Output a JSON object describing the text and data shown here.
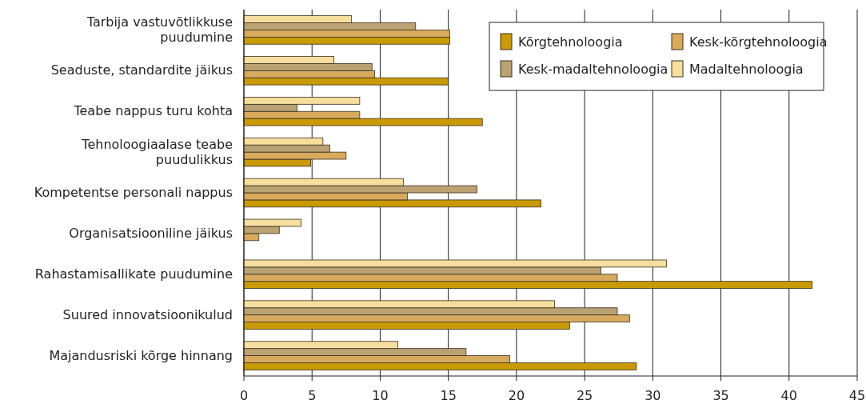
{
  "chart_data": {
    "type": "bar",
    "orientation": "horizontal",
    "categories": [
      "Tarbija vastuvõtlikkuse puudumine",
      "Seaduste, standardite jäikus",
      "Teabe nappus turu kohta",
      "Tehnoloogiaalase teabe puudulikkus",
      "Kompetentse personali nappus",
      "Organisatsiooniline jäikus",
      "Rahastamisallikate puudumine",
      "Suured innovatsioonikulud",
      "Majandusriski kõrge hinnang"
    ],
    "series": [
      {
        "name": "Kõrgtehnoloogia",
        "color": "#c99a06",
        "values": [
          15.1,
          15.0,
          17.5,
          4.9,
          21.8,
          0,
          41.7,
          23.9,
          28.8
        ]
      },
      {
        "name": "Kesk-kõrgtehnoloogia",
        "color": "#d8aa5e",
        "values": [
          15.1,
          9.6,
          8.5,
          7.5,
          12.0,
          1.1,
          27.4,
          28.3,
          19.5
        ]
      },
      {
        "name": "Kesk-madaltehnoloogia",
        "color": "#bba272",
        "values": [
          12.6,
          9.4,
          3.9,
          6.3,
          17.1,
          2.6,
          26.2,
          27.4,
          16.3
        ]
      },
      {
        "name": "Madaltehnoloogia",
        "color": "#f6de9e",
        "values": [
          7.9,
          6.6,
          8.5,
          5.8,
          11.7,
          4.2,
          31.0,
          22.8,
          11.3
        ]
      }
    ],
    "xlim": [
      0,
      45
    ],
    "xticks": [
      0,
      5,
      10,
      15,
      20,
      25,
      30,
      35,
      40,
      45
    ],
    "grid": "x",
    "legend": "top right"
  }
}
